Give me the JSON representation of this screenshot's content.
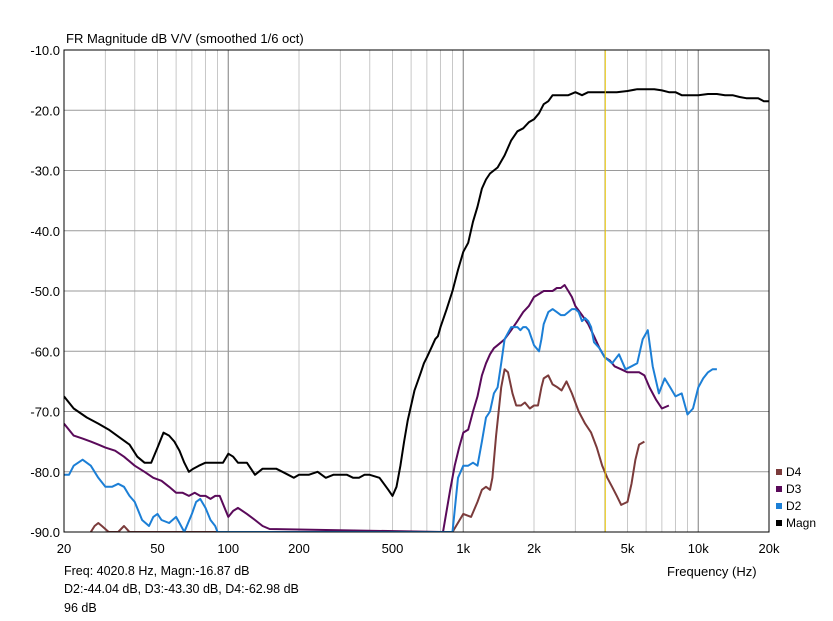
{
  "chart_data": {
    "type": "line",
    "title": "FR Magnitude dB V/V (smoothed 1/6 oct)",
    "xlabel": "Frequency (Hz)",
    "ylabel": "",
    "x_scale": "log",
    "xlim": [
      20,
      20000
    ],
    "ylim": [
      -90,
      -10
    ],
    "grid": true,
    "legend_position": "bottom-right",
    "x_ticks": [
      20,
      50,
      100,
      200,
      500,
      1000,
      2000,
      5000,
      10000,
      20000
    ],
    "x_tick_labels": [
      "20",
      "50",
      "100",
      "200",
      "500",
      "1k",
      "2k",
      "5k",
      "10k",
      "20k"
    ],
    "y_ticks": [
      -10,
      -20,
      -30,
      -40,
      -50,
      -60,
      -70,
      -80,
      -90
    ],
    "y_tick_labels": [
      "-10.0",
      "-20.0",
      "-30.0",
      "-40.0",
      "-50.0",
      "-60.0",
      "-70.0",
      "-80.0",
      "-90.0"
    ],
    "cursor_x": 4020.8,
    "cursor_color": "#e8c400",
    "series": [
      {
        "name": "D4",
        "color": "#7b3b3b",
        "x": [
          26,
          27,
          28,
          29,
          31,
          34,
          36,
          38,
          900,
          1000,
          1080,
          1150,
          1200,
          1250,
          1300,
          1330,
          1380,
          1450,
          1500,
          1550,
          1620,
          1680,
          1760,
          1830,
          1920,
          2000,
          2080,
          2150,
          2200,
          2300,
          2400,
          2520,
          2620,
          2750,
          2900,
          3100,
          3300,
          3500,
          3700,
          3900,
          4100,
          4300,
          4500,
          4700,
          5000,
          5200,
          5400,
          5600,
          5900
        ],
        "values": [
          -90,
          -89,
          -88.5,
          -89,
          -90,
          -90,
          -89,
          -90,
          -90,
          -87,
          -87.5,
          -85,
          -83,
          -82.5,
          -83,
          -81,
          -74,
          -66,
          -63,
          -63.5,
          -67,
          -69,
          -69,
          -68.5,
          -69.5,
          -69,
          -69,
          -66,
          -64.5,
          -64,
          -65.5,
          -66,
          -66.5,
          -65,
          -67,
          -70,
          -72,
          -73.5,
          -76,
          -79,
          -81,
          -82.5,
          -84,
          -85.5,
          -85,
          -82,
          -78,
          -75.5,
          -75
        ]
      },
      {
        "name": "D3",
        "color": "#5a0a5a",
        "x": [
          20,
          22,
          24,
          26,
          28,
          30,
          33,
          36,
          40,
          44,
          48,
          52,
          56,
          60,
          64,
          68,
          72,
          76,
          80,
          84,
          88,
          92,
          100,
          105,
          110,
          120,
          130,
          140,
          150,
          820,
          880,
          920,
          960,
          1000,
          1050,
          1100,
          1150,
          1200,
          1250,
          1300,
          1350,
          1400,
          1450,
          1500,
          1600,
          1700,
          1800,
          1900,
          2000,
          2100,
          2200,
          2300,
          2400,
          2500,
          2600,
          2700,
          2800,
          2900,
          3000,
          3200,
          3400,
          3600,
          3800,
          4000,
          4200,
          4400,
          4700,
          5000,
          5300,
          5600,
          5900,
          6200,
          6600,
          7000,
          7500
        ],
        "values": [
          -72,
          -74,
          -74.5,
          -75,
          -75.5,
          -76,
          -76.5,
          -77.5,
          -79,
          -80,
          -81,
          -81.5,
          -82.5,
          -83.5,
          -83.5,
          -84,
          -83.5,
          -84,
          -84,
          -84.5,
          -84,
          -84,
          -87.5,
          -86.5,
          -86,
          -87,
          -88,
          -89,
          -89.5,
          -90,
          -83,
          -79,
          -76,
          -73.5,
          -73,
          -70,
          -67.5,
          -64,
          -62,
          -60.5,
          -59.5,
          -59,
          -58.5,
          -58,
          -56.5,
          -55,
          -53.5,
          -52.5,
          -51,
          -50.5,
          -50,
          -50,
          -50,
          -49.5,
          -49.5,
          -49,
          -50,
          -51,
          -52.5,
          -54,
          -55.5,
          -57.5,
          -59.5,
          -61,
          -61.5,
          -62.5,
          -63,
          -63.5,
          -63.5,
          -63.5,
          -64,
          -66,
          -68,
          -69.5,
          -69
        ]
      },
      {
        "name": "D2",
        "color": "#1c7fd6",
        "x": [
          20,
          21,
          22,
          24,
          26,
          28,
          30,
          32,
          34,
          36,
          38,
          40,
          43,
          46,
          48,
          50,
          52,
          56,
          60,
          62,
          65,
          70,
          73,
          76,
          80,
          84,
          88,
          90,
          900,
          950,
          1000,
          1050,
          1100,
          1150,
          1200,
          1250,
          1300,
          1350,
          1400,
          1450,
          1500,
          1600,
          1700,
          1750,
          1800,
          1850,
          1900,
          2000,
          2100,
          2150,
          2200,
          2300,
          2400,
          2500,
          2600,
          2700,
          2800,
          2900,
          3000,
          3100,
          3200,
          3300,
          3400,
          3500,
          3600,
          3800,
          4000,
          4300,
          4600,
          4900,
          5200,
          5500,
          5800,
          6100,
          6400,
          6800,
          7200,
          7600,
          8000,
          8500,
          9000,
          9500,
          10000,
          10500,
          11000,
          11500,
          12000
        ],
        "values": [
          -80.5,
          -80.5,
          -79,
          -78,
          -79,
          -81,
          -82.5,
          -82.5,
          -82,
          -82.5,
          -84,
          -85,
          -88,
          -89,
          -87.5,
          -87,
          -88,
          -88.5,
          -87.5,
          -88.5,
          -90,
          -87,
          -85,
          -84.5,
          -86,
          -88,
          -89,
          -90,
          -90,
          -81,
          -79,
          -79,
          -78.5,
          -79,
          -75,
          -71,
          -70,
          -67,
          -66,
          -62,
          -58,
          -56,
          -56,
          -56.5,
          -56,
          -56,
          -56.5,
          -59,
          -60,
          -58,
          -55.5,
          -53.5,
          -53,
          -53.5,
          -54,
          -54,
          -53.5,
          -53,
          -53,
          -53.5,
          -55,
          -54.5,
          -55,
          -56,
          -58.5,
          -59.5,
          -61,
          -62,
          -60.5,
          -63,
          -62.5,
          -62,
          -58,
          -56.5,
          -62.5,
          -67,
          -64.5,
          -66,
          -67.5,
          -67,
          -70.5,
          -69.5,
          -66,
          -64.5,
          -63.5,
          -63,
          -63
        ]
      },
      {
        "name": "Magn",
        "color": "#000000",
        "x": [
          20,
          22,
          25,
          28,
          31,
          35,
          38,
          41,
          44,
          47,
          50,
          53,
          56,
          59,
          62,
          65,
          68,
          71,
          75,
          80,
          85,
          90,
          95,
          100,
          105,
          110,
          115,
          120,
          130,
          140,
          150,
          160,
          170,
          180,
          190,
          200,
          220,
          240,
          260,
          280,
          300,
          320,
          340,
          360,
          380,
          400,
          440,
          480,
          500,
          520,
          540,
          560,
          580,
          600,
          620,
          640,
          660,
          680,
          700,
          720,
          740,
          760,
          780,
          800,
          850,
          900,
          950,
          1000,
          1050,
          1100,
          1150,
          1200,
          1250,
          1300,
          1400,
          1500,
          1600,
          1700,
          1800,
          1900,
          2000,
          2100,
          2200,
          2300,
          2400,
          2600,
          2800,
          3000,
          3200,
          3400,
          3600,
          3800,
          4000,
          4500,
          5000,
          5500,
          6000,
          6500,
          7000,
          7500,
          8000,
          8500,
          9000,
          9500,
          10000,
          11000,
          12000,
          13000,
          14000,
          15000,
          16000,
          17000,
          18000,
          19000,
          20000
        ],
        "values": [
          -67.5,
          -69.5,
          -71,
          -72,
          -73,
          -74.5,
          -75.5,
          -77.5,
          -78.5,
          -78.5,
          -76,
          -73.5,
          -74,
          -75,
          -76.5,
          -78.5,
          -80,
          -79.5,
          -79,
          -78.5,
          -78.5,
          -78.5,
          -78.5,
          -77,
          -77.5,
          -78.5,
          -78.5,
          -78.5,
          -80.5,
          -79.5,
          -79.5,
          -79.5,
          -80,
          -80.5,
          -81,
          -80.5,
          -80.5,
          -80,
          -81,
          -80.5,
          -80.5,
          -80.5,
          -81,
          -81,
          -80.5,
          -80.5,
          -81,
          -83,
          -84,
          -82.5,
          -79,
          -75,
          -71.5,
          -69,
          -66.5,
          -65,
          -63.5,
          -62,
          -61,
          -60,
          -59,
          -58,
          -57.5,
          -56,
          -53,
          -50,
          -46.5,
          -43.5,
          -42,
          -38.5,
          -36,
          -33,
          -31.5,
          -30.5,
          -29.5,
          -27.5,
          -25,
          -23.5,
          -23,
          -22,
          -21.5,
          -20.5,
          -19,
          -18.5,
          -17.5,
          -17.5,
          -17.5,
          -17,
          -17.5,
          -17,
          -17,
          -17,
          -17,
          -17,
          -16.8,
          -16.5,
          -16.5,
          -16.5,
          -16.7,
          -17,
          -17,
          -17.5,
          -17.5,
          -17.5,
          -17.5,
          -17.3,
          -17.3,
          -17.5,
          -17.5,
          -17.8,
          -18,
          -18,
          -18,
          -18.5,
          -18.5
        ]
      }
    ],
    "legend_order": [
      "D4",
      "D3",
      "D2",
      "Magn"
    ]
  },
  "readout": {
    "line1": "Freq: 4020.8 Hz, Magn:-16.87 dB",
    "line2": "D2:-44.04 dB, D3:-43.30 dB, D4:-62.98 dB",
    "line3": "96 dB"
  }
}
